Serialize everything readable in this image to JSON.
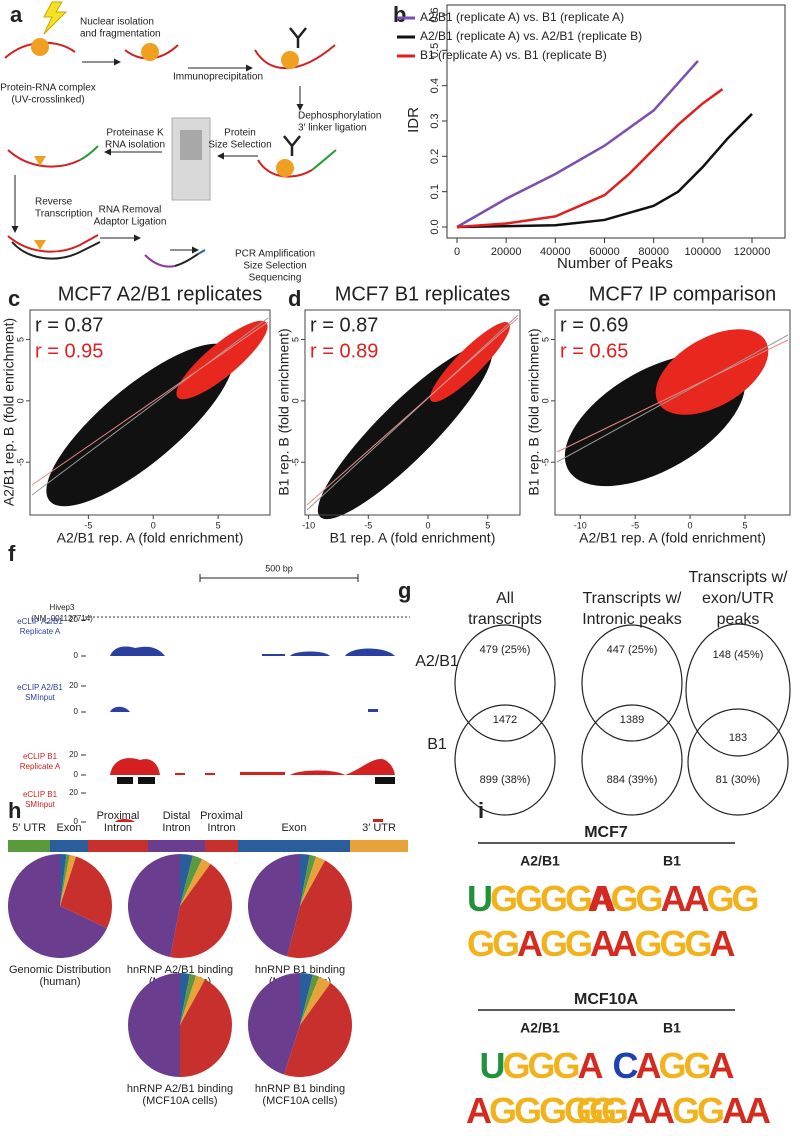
{
  "figure": {
    "panel_letters": [
      "a",
      "b",
      "c",
      "d",
      "e",
      "f",
      "g",
      "h",
      "i"
    ],
    "a": {
      "steps": [
        [
          "Nuclear isolation",
          "and fragmentation"
        ],
        [
          "Protein-RNA complex",
          "(UV-crosslinked)"
        ],
        [
          "Immunoprecipitation"
        ],
        [
          "Dephosphorylation",
          "3′ linker ligation"
        ],
        [
          "Protein",
          "Size Selection"
        ],
        [
          "Proteinase K",
          "RNA isolation"
        ],
        [
          "Reverse",
          "Transcription"
        ],
        [
          "RNA Removal",
          "Adaptor Ligation"
        ],
        [
          "PCR Amplification",
          "Size Selection",
          "Sequencing"
        ]
      ]
    },
    "b": {
      "type": "line",
      "x_label": "Number of Peaks",
      "y_label": "IDR",
      "xlim": [
        0,
        120000
      ],
      "ylim": [
        0,
        0.6
      ],
      "xticks": [
        0,
        20000,
        40000,
        60000,
        80000,
        100000,
        120000
      ],
      "yticks": [
        {
          "value": 0,
          "label": "0.0"
        },
        0.1,
        0.2,
        0.3,
        0.4,
        0.5,
        0.6
      ],
      "legend": "upper left",
      "series": [
        {
          "name": "A2/B1 (replicate A) vs. B1 (replicate A)",
          "color": "#7b4fb0",
          "x": [
            0,
            10000,
            20000,
            40000,
            60000,
            80000,
            98000
          ],
          "values": [
            0,
            0.04,
            0.08,
            0.15,
            0.23,
            0.33,
            0.47
          ]
        },
        {
          "name": "A2/B1 (replicate A) vs. A2/B1 (replicate B)",
          "color": "#111111",
          "x": [
            0,
            40000,
            60000,
            80000,
            90000,
            100000,
            110000,
            120000
          ],
          "values": [
            0,
            0.005,
            0.02,
            0.06,
            0.1,
            0.17,
            0.25,
            0.32
          ]
        },
        {
          "name": "B1 (replicate A) vs. B1 (replicate B)",
          "color": "#e02020",
          "x": [
            0,
            20000,
            40000,
            60000,
            70000,
            80000,
            90000,
            100000,
            108000
          ],
          "values": [
            0,
            0.01,
            0.03,
            0.09,
            0.15,
            0.22,
            0.29,
            0.35,
            0.39
          ]
        }
      ]
    },
    "scatters": [
      {
        "title": "MCF7 A2/B1 replicates",
        "r_all": "r = 0.87",
        "r_top": "r = 0.95",
        "x_label": "A2/B1 rep. A (fold enrichment)",
        "y_label": "A2/B1 rep. B (fold enrichment)",
        "xlim": [
          -9.5,
          9
        ],
        "ylim": [
          -9.3,
          7.4
        ],
        "xticks": [
          -5,
          0,
          5
        ],
        "yticks": [
          -5,
          0,
          5
        ]
      },
      {
        "title": "MCF7 B1 replicates",
        "r_all": "r = 0.87",
        "r_top": "r = 0.89",
        "x_label": "B1 rep. A (fold enrichment)",
        "y_label": "B1 rep. B (fold enrichment)",
        "xlim": [
          -10.3,
          7.7
        ],
        "ylim": [
          -9.3,
          7.4
        ],
        "xticks": [
          -10,
          -5,
          0,
          5
        ],
        "yticks": [
          -5,
          0,
          5
        ]
      },
      {
        "title": "MCF7 IP comparison",
        "r_all": "r = 0.69",
        "r_top": "r = 0.65",
        "x_label": "A2/B1 rep. A (fold enrichment)",
        "y_label": "B1 rep. B (fold enrichment)",
        "xlim": [
          -12.3,
          9.1
        ],
        "ylim": [
          -9.3,
          7.4
        ],
        "xticks": [
          -10,
          -5,
          0,
          5
        ],
        "yticks": [
          -5,
          0,
          5
        ]
      }
    ],
    "f": {
      "gene": "Hivep3",
      "accession": "(NM_001127714)",
      "scale_bar": "500 bp",
      "tracks": [
        {
          "label": [
            "eCLIP A2/B1",
            "Replicate A"
          ],
          "color": "#2b3fa0",
          "scale": [
            20,
            0
          ]
        },
        {
          "label": [
            "eCLIP A2/B1",
            "SMInput"
          ],
          "color": "#2b3fa0",
          "scale": [
            20,
            0
          ]
        },
        {
          "label": [
            "eCLIP B1",
            "Replicate A"
          ],
          "color": "#d42020",
          "scale": [
            20,
            0
          ]
        },
        {
          "label": [
            "eCLIP B1",
            "SMInput"
          ],
          "color": "#d42020",
          "scale": [
            20,
            0
          ]
        }
      ]
    },
    "g": {
      "rows": [
        "A2/B1",
        "B1"
      ],
      "columns": [
        {
          "header": [
            "All",
            "transcripts"
          ],
          "top": "479 (25%)",
          "overlap": "1472",
          "bottom": "899 (38%)"
        },
        {
          "header": [
            "Transcripts w/",
            "Intronic peaks"
          ],
          "top": "447 (25%)",
          "overlap": "1389",
          "bottom": "884 (39%)"
        },
        {
          "header": [
            "Transcripts w/",
            "exon/UTR",
            "peaks"
          ],
          "top": "148 (45%)",
          "overlap": "183",
          "bottom": "81 (30%)"
        }
      ]
    },
    "h": {
      "regions": [
        {
          "label": [
            "5′ UTR"
          ],
          "color": "#5a9a3c"
        },
        {
          "label": [
            "Exon"
          ],
          "color": "#2a5d9c"
        },
        {
          "label": [
            "Proximal",
            "Intron"
          ],
          "color": "#c8302e"
        },
        {
          "label": [
            "Distal",
            "Intron"
          ],
          "color": "#6a3d8e"
        },
        {
          "label": [
            "Proximal",
            "Intron"
          ],
          "color": "#c8302e"
        },
        {
          "label": [
            "Exon"
          ],
          "color": "#2a5d9c"
        },
        {
          "label": [
            "3′ UTR"
          ],
          "color": "#e8a23a"
        }
      ],
      "pie_colors": [
        "#2a5d9c",
        "#5a9a3c",
        "#e8a23a",
        "#c8302e",
        "#6a3d8e"
      ],
      "pies": [
        {
          "caption": [
            "Genomic Distribution",
            "(human)"
          ],
          "values": [
            2,
            1,
            2,
            27,
            68
          ]
        },
        {
          "caption": [
            "hnRNP A2/B1 binding",
            "(MCF7 cells)"
          ],
          "values": [
            4,
            3,
            3,
            43,
            47
          ]
        },
        {
          "caption": [
            "hnRNP B1 binding",
            "(MCF7 cells)"
          ],
          "values": [
            3,
            2,
            3,
            46,
            46
          ]
        },
        {
          "caption": [
            "hnRNP A2/B1 binding",
            "(MCF10A cells)"
          ],
          "values": [
            3,
            2,
            3,
            42,
            50
          ]
        },
        {
          "caption": [
            "hnRNP B1 binding",
            "(MCF10A cells)"
          ],
          "values": [
            4,
            2,
            4,
            45,
            45
          ]
        }
      ]
    },
    "i": {
      "letter_colors": {
        "A": "#d42a20",
        "C": "#2040b0",
        "G": "#f2b21c",
        "U": "#21923a"
      },
      "groups": [
        {
          "cell_line": "MCF7",
          "columns": [
            {
              "protein": "A2/B1",
              "motifs": [
                "UGGGGA",
                "GGAGGA"
              ]
            },
            {
              "protein": "B1",
              "motifs": [
                "AGGAAGG",
                "AGGGA"
              ]
            }
          ]
        },
        {
          "cell_line": "MCF10A",
          "columns": [
            {
              "protein": "A2/B1",
              "motifs": [
                "UGGGA",
                "AGGGGG"
              ]
            },
            {
              "protein": "B1",
              "motifs": [
                "CAGGA",
                "GGAAGGAA"
              ]
            }
          ]
        }
      ]
    }
  }
}
